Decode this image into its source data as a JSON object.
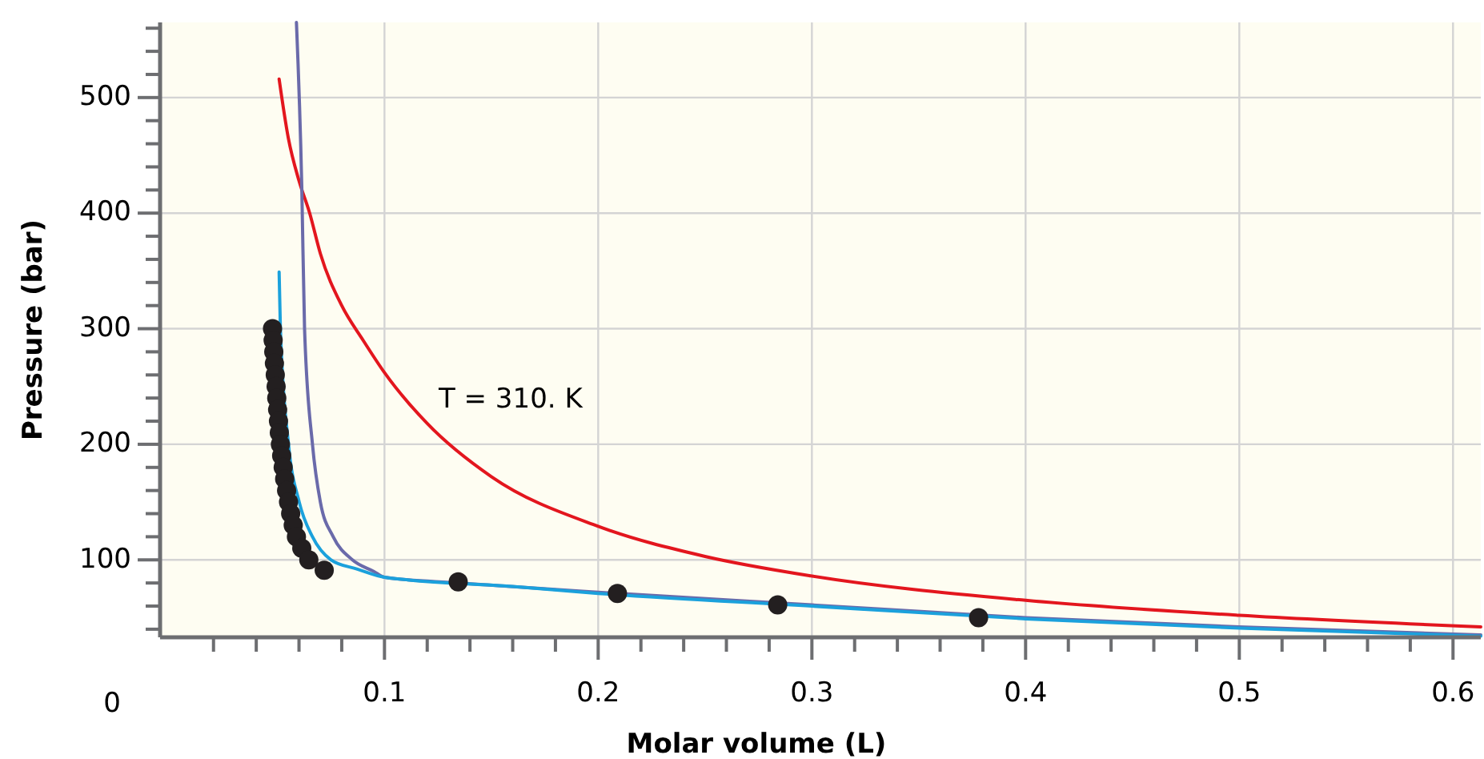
{
  "chart_data": {
    "type": "line",
    "xlabel": "Molar volume (L)",
    "ylabel": "Pressure (bar)",
    "xlim": [
      -0.005,
      0.613
    ],
    "ylim": [
      33,
      565
    ],
    "xticks": [
      {
        "value": 0.02,
        "label": null
      },
      {
        "value": 0.04,
        "label": null
      },
      {
        "value": 0.06,
        "label": null
      },
      {
        "value": 0.08,
        "label": null
      },
      0.1,
      {
        "value": 0.12,
        "label": null
      },
      {
        "value": 0.14,
        "label": null
      },
      {
        "value": 0.16,
        "label": null
      },
      {
        "value": 0.18,
        "label": null
      },
      0.2,
      {
        "value": 0.22,
        "label": null
      },
      {
        "value": 0.24,
        "label": null
      },
      {
        "value": 0.26,
        "label": null
      },
      {
        "value": 0.28,
        "label": null
      },
      0.3,
      {
        "value": 0.32,
        "label": null
      },
      {
        "value": 0.34,
        "label": null
      },
      {
        "value": 0.36,
        "label": null
      },
      {
        "value": 0.38,
        "label": null
      },
      0.4,
      {
        "value": 0.42,
        "label": null
      },
      {
        "value": 0.44,
        "label": null
      },
      {
        "value": 0.46,
        "label": null
      },
      {
        "value": 0.48,
        "label": null
      },
      0.5,
      {
        "value": 0.52,
        "label": null
      },
      {
        "value": 0.54,
        "label": null
      },
      {
        "value": 0.56,
        "label": null
      },
      {
        "value": 0.58,
        "label": null
      },
      0.6
    ],
    "yticks": [
      {
        "value": 40,
        "label": null
      },
      {
        "value": 60,
        "label": null
      },
      {
        "value": 80,
        "label": null
      },
      100,
      {
        "value": 120,
        "label": null
      },
      {
        "value": 140,
        "label": null
      },
      {
        "value": 160,
        "label": null
      },
      {
        "value": 180,
        "label": null
      },
      200,
      {
        "value": 220,
        "label": null
      },
      {
        "value": 240,
        "label": null
      },
      {
        "value": 260,
        "label": null
      },
      {
        "value": 280,
        "label": null
      },
      300,
      {
        "value": 320,
        "label": null
      },
      {
        "value": 340,
        "label": null
      },
      {
        "value": 360,
        "label": null
      },
      {
        "value": 380,
        "label": null
      },
      400,
      {
        "value": 420,
        "label": null
      },
      {
        "value": 440,
        "label": null
      },
      {
        "value": 460,
        "label": null
      },
      {
        "value": 480,
        "label": null
      },
      500,
      {
        "value": 520,
        "label": null
      },
      {
        "value": 540,
        "label": null
      },
      {
        "value": 560,
        "label": null
      }
    ],
    "grid": true,
    "marker": "none",
    "line_style": "solid",
    "series": [
      {
        "color": "#e3161e",
        "x": [
          0.0507,
          0.055,
          0.06,
          0.065,
          0.07,
          0.08,
          0.09,
          0.1,
          0.12,
          0.15,
          0.2,
          0.25,
          0.3,
          0.4,
          0.5,
          0.613
        ],
        "values": [
          516,
          465,
          428,
          400,
          365,
          320,
          290,
          262,
          218,
          172,
          129,
          103,
          86,
          65,
          52,
          42
        ]
      },
      {
        "color": "#6a6aaa",
        "x": [
          0.0588,
          0.0613,
          0.0626,
          0.0663,
          0.07,
          0.076,
          0.085,
          0.095,
          0.1,
          0.135,
          0.2,
          0.3,
          0.4,
          0.5,
          0.613
        ],
        "values": [
          565,
          423,
          300,
          200,
          150,
          120,
          100,
          90,
          85,
          80,
          72,
          61,
          50,
          42,
          35
        ]
      },
      {
        "color": "#1ba1dc",
        "x": [
          0.0507,
          0.0513,
          0.0551,
          0.0601,
          0.0663,
          0.075,
          0.0873,
          0.1,
          0.16,
          0.2,
          0.3,
          0.4,
          0.5,
          0.613
        ],
        "values": [
          349,
          300,
          200,
          150,
          120,
          100,
          92,
          85,
          77,
          71,
          60,
          49,
          41,
          34
        ]
      },
      {
        "type": "scatter",
        "marker": "circle",
        "color": "#231f20",
        "x": [
          0.0476,
          0.0479,
          0.0482,
          0.0485,
          0.0489,
          0.0493,
          0.0496,
          0.05,
          0.0504,
          0.0508,
          0.0513,
          0.0519,
          0.0526,
          0.0533,
          0.0542,
          0.0551,
          0.0561,
          0.0573,
          0.0588,
          0.0613,
          0.0646,
          0.0718,
          0.1345,
          0.209,
          0.284,
          0.378
        ],
        "values": [
          300,
          290,
          280,
          270,
          260,
          250,
          240,
          230,
          220,
          210,
          200,
          190,
          180,
          170,
          160,
          150,
          140,
          130,
          120,
          110,
          100,
          91,
          81,
          71,
          61,
          50
        ]
      }
    ],
    "annotations": [
      "T = 310. K",
      "0"
    ]
  }
}
